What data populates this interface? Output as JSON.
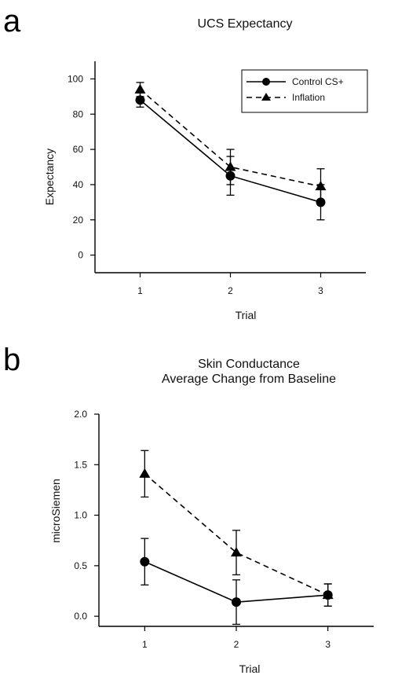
{
  "chart_data": [
    {
      "panel": "a",
      "type": "line",
      "title": "UCS Expectancy",
      "xlabel": "Trial",
      "ylabel": "Expectancy",
      "x": [
        1,
        2,
        3
      ],
      "xlim": [
        0.5,
        3.5
      ],
      "ylim": [
        -10,
        110
      ],
      "yticks": [
        0,
        20,
        40,
        60,
        80,
        100
      ],
      "grid": false,
      "legend_position": "top-right",
      "series": [
        {
          "name": "Control CS+",
          "marker": "circle",
          "line": "solid",
          "values": [
            88,
            45,
            30
          ],
          "errors": [
            4,
            11,
            10
          ]
        },
        {
          "name": "Inflation",
          "marker": "triangle",
          "line": "dashed",
          "values": [
            94,
            50,
            39
          ],
          "errors": [
            4,
            10,
            10
          ]
        }
      ]
    },
    {
      "panel": "b",
      "type": "line",
      "title": "Skin Conductance",
      "subtitle": "Average Change from Baseline",
      "xlabel": "Trial",
      "ylabel": "microSiemen",
      "x": [
        1,
        2,
        3
      ],
      "xlim": [
        0.5,
        3.5
      ],
      "ylim": [
        -0.1,
        2.0
      ],
      "yticks": [
        0.0,
        0.5,
        1.0,
        1.5,
        2.0
      ],
      "ytick_labels": [
        "0.0",
        "0.5",
        "1.0",
        "1.5",
        "2.0"
      ],
      "grid": false,
      "series": [
        {
          "marker": "circle",
          "line": "solid",
          "values": [
            0.54,
            0.14,
            0.21
          ],
          "errors": [
            0.23,
            0.22,
            0.11
          ]
        },
        {
          "marker": "triangle",
          "line": "dashed",
          "values": [
            1.41,
            0.63,
            0.21
          ],
          "errors": [
            0.23,
            0.22,
            0.11
          ]
        }
      ]
    }
  ]
}
